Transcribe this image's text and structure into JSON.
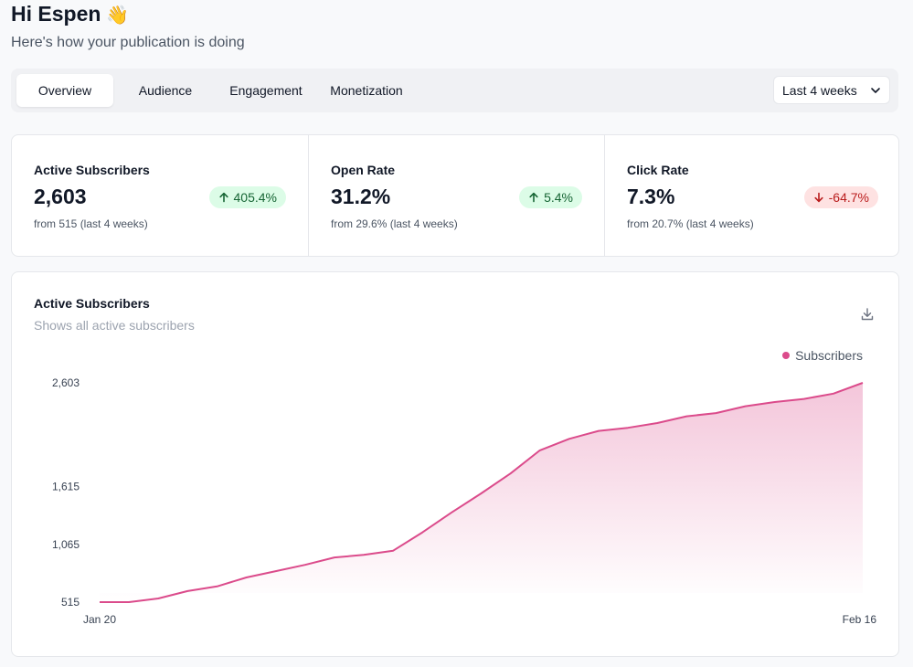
{
  "header": {
    "greeting": "Hi Espen",
    "wave_emoji": "👋",
    "subtitle": "Here's how your publication is doing"
  },
  "tabs": [
    {
      "label": "Overview",
      "active": true
    },
    {
      "label": "Audience",
      "active": false
    },
    {
      "label": "Engagement",
      "active": false
    },
    {
      "label": "Monetization",
      "active": false
    }
  ],
  "range_select": {
    "value": "Last 4 weeks"
  },
  "stats": [
    {
      "label": "Active Subscribers",
      "value": "2,603",
      "change": "405.4%",
      "direction": "up",
      "from": "from 515 (last 4 weeks)"
    },
    {
      "label": "Open Rate",
      "value": "31.2%",
      "change": "5.4%",
      "direction": "up",
      "from": "from 29.6% (last 4 weeks)"
    },
    {
      "label": "Click Rate",
      "value": "7.3%",
      "change": "-64.7%",
      "direction": "down",
      "from": "from 20.7% (last 4 weeks)"
    }
  ],
  "chart_card": {
    "title": "Active Subscribers",
    "subtitle": "Shows all active subscribers",
    "legend_label": "Subscribers"
  },
  "colors": {
    "accent": "#db4b8b",
    "up_bg": "#dcfce7",
    "down_bg": "#fee2e2"
  },
  "chart_data": {
    "type": "area",
    "title": "Active Subscribers",
    "series": [
      {
        "name": "Subscribers",
        "values": [
          515,
          515,
          550,
          620,
          665,
          750,
          810,
          870,
          940,
          965,
          1005,
          1180,
          1370,
          1550,
          1740,
          1960,
          2070,
          2145,
          2175,
          2220,
          2285,
          2315,
          2380,
          2420,
          2450,
          2500,
          2603
        ]
      }
    ],
    "x_start_label": "Jan 20",
    "x_end_label": "Feb 16",
    "y_ticks": [
      {
        "value": 515,
        "label": "515"
      },
      {
        "value": 1065,
        "label": "1,065"
      },
      {
        "value": 1615,
        "label": "1,615"
      },
      {
        "value": 2603,
        "label": "2,603"
      }
    ],
    "ylim": [
      515,
      2603
    ],
    "grid": false,
    "legend": "top-right"
  }
}
